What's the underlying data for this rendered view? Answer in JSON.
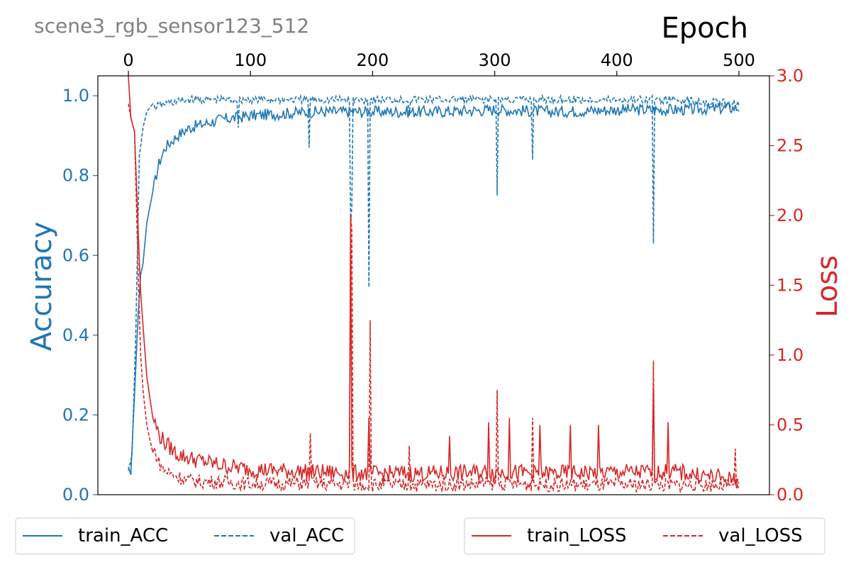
{
  "chart_data": {
    "type": "line",
    "title": "scene3_rgb_sensor123_512",
    "xlabel": "Epoch",
    "x_ticks": [
      0,
      100,
      200,
      300,
      400,
      500
    ],
    "xlim": [
      -25,
      525
    ],
    "left_axis": {
      "label": "Accuracy",
      "ylim": [
        0.0,
        1.05
      ],
      "ticks": [
        "0.0",
        "0.2",
        "0.4",
        "0.6",
        "0.8",
        "1.0"
      ],
      "color": "#1f77b4"
    },
    "right_axis": {
      "label": "Loss",
      "ylim": [
        0.0,
        3.0
      ],
      "ticks": [
        "0.0",
        "0.5",
        "1.0",
        "1.5",
        "2.0",
        "2.5",
        "3.0"
      ],
      "color": "#d62728"
    },
    "series": [
      {
        "name": "train_ACC",
        "axis": "left",
        "color": "#1f77b4",
        "dash": "solid",
        "x": [
          0,
          2,
          5,
          8,
          10,
          12,
          15,
          20,
          25,
          30,
          40,
          50,
          75,
          100,
          150,
          200,
          250,
          300,
          350,
          400,
          450,
          500
        ],
        "y": [
          0.07,
          0.05,
          0.25,
          0.45,
          0.55,
          0.58,
          0.68,
          0.76,
          0.83,
          0.87,
          0.9,
          0.92,
          0.94,
          0.95,
          0.96,
          0.96,
          0.96,
          0.965,
          0.96,
          0.965,
          0.965,
          0.97
        ]
      },
      {
        "name": "val_ACC",
        "axis": "left",
        "color": "#1f77b4",
        "dash": "dashed",
        "x": [
          0,
          3,
          6,
          9,
          12,
          15,
          20,
          30,
          50,
          100,
          150,
          200,
          250,
          300,
          350,
          400,
          450,
          500
        ],
        "y": [
          0.06,
          0.1,
          0.4,
          0.85,
          0.92,
          0.96,
          0.98,
          0.99,
          1.0,
          1.0,
          1.0,
          1.0,
          1.0,
          1.0,
          1.0,
          1.0,
          1.0,
          0.99
        ],
        "dips": [
          {
            "x": 90,
            "y": 0.92
          },
          {
            "x": 148,
            "y": 0.87
          },
          {
            "x": 182,
            "y": 0.68
          },
          {
            "x": 183,
            "y": 0.72
          },
          {
            "x": 197,
            "y": 0.52
          },
          {
            "x": 230,
            "y": 0.95
          },
          {
            "x": 302,
            "y": 0.75
          },
          {
            "x": 331,
            "y": 0.84
          },
          {
            "x": 430,
            "y": 0.63
          }
        ]
      },
      {
        "name": "train_LOSS",
        "axis": "right",
        "color": "#d62728",
        "dash": "solid",
        "x": [
          0,
          2,
          5,
          8,
          10,
          15,
          20,
          25,
          30,
          40,
          50,
          75,
          100,
          150,
          200,
          250,
          300,
          350,
          400,
          450,
          500
        ],
        "y": [
          3.0,
          2.7,
          2.6,
          1.9,
          1.45,
          0.85,
          0.55,
          0.42,
          0.36,
          0.28,
          0.25,
          0.2,
          0.17,
          0.15,
          0.14,
          0.14,
          0.15,
          0.14,
          0.15,
          0.15,
          0.09
        ],
        "spikes": [
          {
            "x": 182,
            "y": 2.0
          },
          {
            "x": 197,
            "y": 0.55
          },
          {
            "x": 263,
            "y": 0.42
          },
          {
            "x": 295,
            "y": 0.52
          },
          {
            "x": 312,
            "y": 0.55
          },
          {
            "x": 337,
            "y": 0.5
          },
          {
            "x": 362,
            "y": 0.5
          },
          {
            "x": 385,
            "y": 0.5
          },
          {
            "x": 430,
            "y": 0.78
          },
          {
            "x": 442,
            "y": 0.52
          }
        ]
      },
      {
        "name": "val_LOSS",
        "axis": "right",
        "color": "#d62728",
        "dash": "dashed",
        "x": [
          0,
          2,
          5,
          8,
          10,
          12,
          15,
          20,
          25,
          30,
          40,
          50,
          75,
          100,
          150,
          200,
          250,
          300,
          350,
          400,
          450,
          500
        ],
        "y": [
          2.8,
          2.7,
          2.6,
          1.6,
          1.0,
          0.75,
          0.5,
          0.3,
          0.18,
          0.12,
          0.08,
          0.05,
          0.04,
          0.03,
          0.03,
          0.02,
          0.02,
          0.03,
          0.02,
          0.02,
          0.02,
          0.02
        ],
        "spikes": [
          {
            "x": 149,
            "y": 0.44
          },
          {
            "x": 182,
            "y": 2.0
          },
          {
            "x": 183,
            "y": 1.9
          },
          {
            "x": 198,
            "y": 1.25
          },
          {
            "x": 230,
            "y": 0.35
          },
          {
            "x": 302,
            "y": 0.75
          },
          {
            "x": 331,
            "y": 0.55
          },
          {
            "x": 430,
            "y": 0.96
          },
          {
            "x": 497,
            "y": 0.33
          }
        ]
      }
    ],
    "legends": [
      {
        "placement": "bottom-left",
        "entries": [
          "train_ACC",
          "val_ACC"
        ]
      },
      {
        "placement": "bottom-right",
        "entries": [
          "train_LOSS",
          "val_LOSS"
        ]
      }
    ],
    "grid": false
  }
}
